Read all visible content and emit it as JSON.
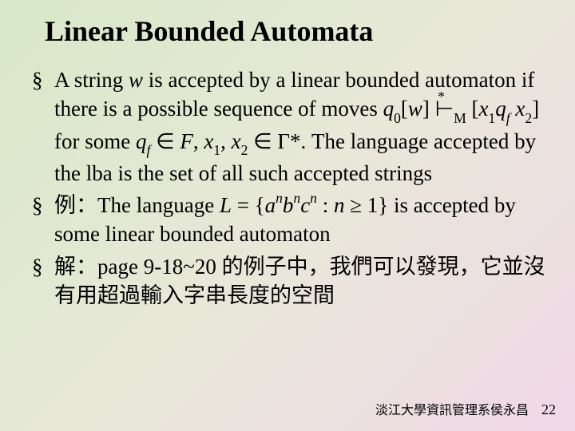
{
  "background": {
    "gradient_start": "#d8e8c8",
    "gradient_mid": "#e8e8d8",
    "gradient_end": "#f0d8e8"
  },
  "title": {
    "text": "Linear Bounded Automata",
    "fontsize": 36,
    "color": "#000000"
  },
  "bullets": [
    {
      "p1": "A string ",
      "w": "w",
      "p2": " is accepted by a linear bounded automaton if there is a possible sequence of moves ",
      "q0": "q",
      "q0sub": "0",
      "br1": "[",
      "w2": "w",
      "br2": "] ",
      "turnstile": "⊢",
      "star": "*",
      "msub": "M",
      "sp": " [",
      "x1": "x",
      "x1sub": "1",
      "qf": "q",
      "qfsub": "f",
      "sp2": " ",
      "x2": "x",
      "x2sub": "2",
      "br3": "] for some ",
      "qf2": "q",
      "qf2sub": "f",
      "in": " ∈ ",
      "F": "F",
      "comma": ", ",
      "x1b": "x",
      "x1bsub": "1",
      "comma2": ", ",
      "x2b": "x",
      "x2bsub": "2",
      "in2": " ∈ Γ*. The language accepted by the lba is the set of all such accepted strings"
    },
    {
      "p1": "例：The language ",
      "L": "L",
      "eq": " = {",
      "a": "a",
      "an": "n",
      "b": "b",
      "bn": "n",
      "c": "c",
      "cn": "n",
      "colon": " : ",
      "n": "n",
      "ge": " ≥ 1} is accepted by some linear bounded automaton"
    },
    {
      "p1": "解：page 9-18~20 的例子中，我們可以發現，它並沒有用超過輸入字串長度的空間"
    }
  ],
  "footer": {
    "text": "淡江大學資訊管理系侯永昌",
    "page": "22",
    "fontsize": 16
  }
}
